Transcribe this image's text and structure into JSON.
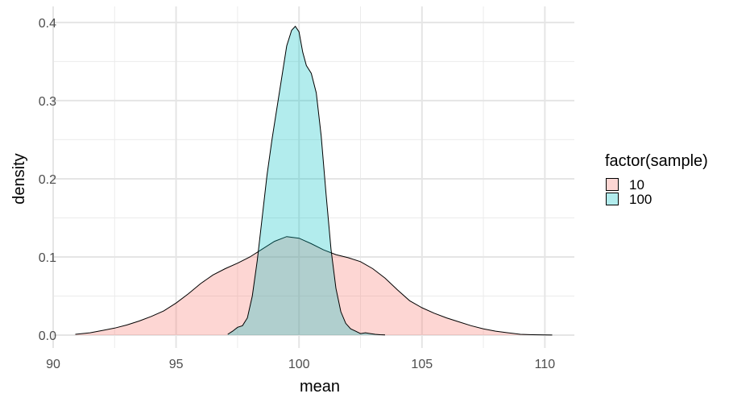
{
  "chart_data": {
    "type": "area",
    "title": "",
    "xlabel": "mean",
    "ylabel": "density",
    "xlim": [
      90,
      111.2
    ],
    "ylim": [
      -0.0165,
      0.4205
    ],
    "x_ticks": [
      90,
      95,
      100,
      105,
      110
    ],
    "x_tick_labels": [
      "90",
      "95",
      "100",
      "105",
      "110"
    ],
    "y_ticks": [
      0.0,
      0.1,
      0.2,
      0.3,
      0.4
    ],
    "y_tick_labels": [
      "0.0",
      "0.1",
      "0.2",
      "0.3",
      "0.4"
    ],
    "grid": true,
    "legend": {
      "title": "factor(sample)",
      "placement": "right"
    },
    "series": [
      {
        "name": "10",
        "color": "#F8766D",
        "x": [
          90.9,
          91.5,
          92,
          92.5,
          93,
          93.5,
          94,
          94.5,
          95,
          95.5,
          96,
          96.5,
          97,
          97.5,
          98,
          98.5,
          99,
          99.5,
          100,
          100.5,
          101,
          101.5,
          102,
          102.5,
          103,
          103.5,
          104,
          104.5,
          105,
          105.5,
          106,
          106.5,
          107,
          107.5,
          108,
          108.5,
          109,
          109.5,
          110,
          110.3
        ],
        "y": [
          0.001,
          0.003,
          0.006,
          0.009,
          0.013,
          0.018,
          0.024,
          0.031,
          0.041,
          0.053,
          0.066,
          0.077,
          0.085,
          0.092,
          0.1,
          0.11,
          0.12,
          0.126,
          0.124,
          0.117,
          0.109,
          0.103,
          0.099,
          0.094,
          0.085,
          0.073,
          0.058,
          0.044,
          0.035,
          0.028,
          0.022,
          0.017,
          0.012,
          0.008,
          0.005,
          0.003,
          0.001,
          0.0005,
          0.0002,
          0.0001
        ]
      },
      {
        "name": "100",
        "color": "#00BFC4",
        "x": [
          97.1,
          97.3,
          97.5,
          97.7,
          97.9,
          98.1,
          98.3,
          98.5,
          98.7,
          98.9,
          99.1,
          99.3,
          99.5,
          99.7,
          99.85,
          100.0,
          100.15,
          100.3,
          100.5,
          100.7,
          100.9,
          101.1,
          101.3,
          101.5,
          101.7,
          101.9,
          102.1,
          102.3,
          102.5,
          102.7,
          102.9,
          103.1,
          103.3,
          103.5
        ],
        "y": [
          0.001,
          0.005,
          0.01,
          0.012,
          0.022,
          0.05,
          0.095,
          0.15,
          0.205,
          0.25,
          0.29,
          0.33,
          0.37,
          0.39,
          0.395,
          0.388,
          0.362,
          0.345,
          0.335,
          0.31,
          0.255,
          0.18,
          0.11,
          0.06,
          0.03,
          0.015,
          0.008,
          0.005,
          0.002,
          0.003,
          0.002,
          0.001,
          0.0005,
          0.0002
        ]
      }
    ]
  }
}
